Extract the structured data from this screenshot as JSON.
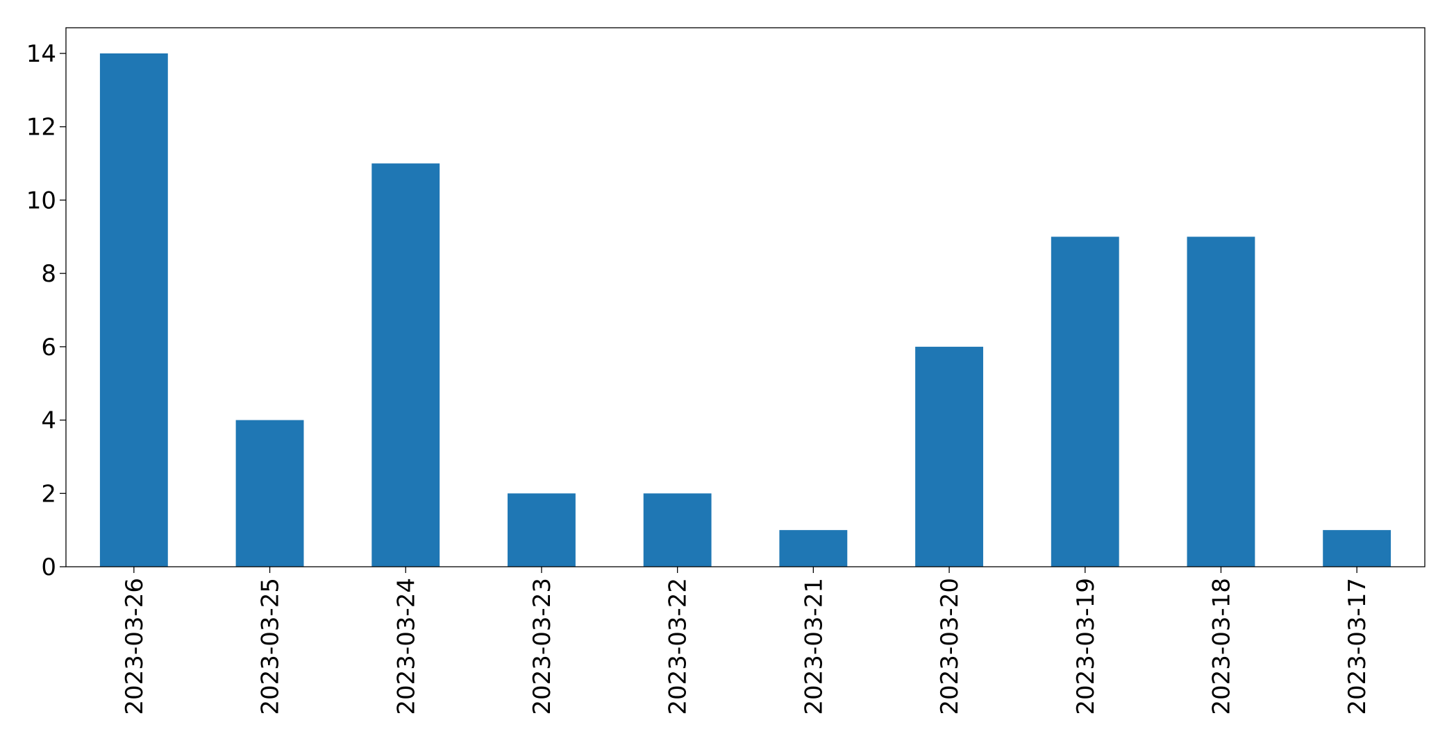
{
  "chart_data": {
    "type": "bar",
    "categories": [
      "2023-03-26",
      "2023-03-25",
      "2023-03-24",
      "2023-03-23",
      "2023-03-22",
      "2023-03-21",
      "2023-03-20",
      "2023-03-19",
      "2023-03-18",
      "2023-03-17"
    ],
    "values": [
      14,
      4,
      11,
      2,
      2,
      1,
      6,
      9,
      9,
      1
    ],
    "color": "#1f77b4",
    "ylim": [
      0,
      14.7
    ],
    "yticks": [
      0,
      2,
      4,
      6,
      8,
      10,
      12,
      14
    ],
    "grid": false
  }
}
